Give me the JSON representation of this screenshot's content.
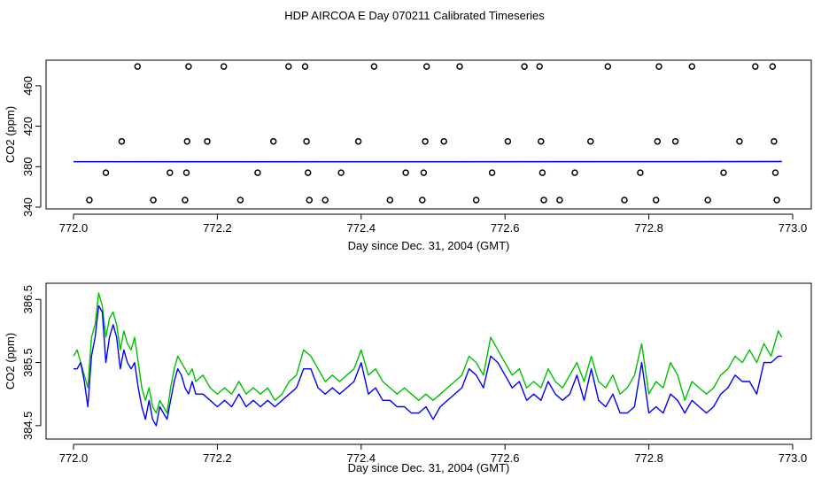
{
  "title": "HDP AIRCOA E  Day 070211  Calibrated Timeseries",
  "colors": {
    "green": "#00c000",
    "blue": "#0000ff",
    "black": "#000000"
  },
  "chart_data": [
    {
      "type": "scatter",
      "xlabel": "Day since Dec. 31, 2004 (GMT)",
      "ylabel": "CO2 (ppm)",
      "xlim": [
        772.0,
        773.0
      ],
      "ylim": [
        340,
        480
      ],
      "xticks": [
        "772.0",
        "772.2",
        "772.4",
        "772.6",
        "772.8",
        "773.0"
      ],
      "yticks": [
        "340",
        "380",
        "420",
        "460"
      ],
      "scatter_points": [
        [
          772.022,
          347
        ],
        [
          772.045,
          374
        ],
        [
          772.067,
          405
        ],
        [
          772.089,
          479
        ],
        [
          772.111,
          347
        ],
        [
          772.134,
          374
        ],
        [
          772.155,
          347
        ],
        [
          772.157,
          374
        ],
        [
          772.158,
          405
        ],
        [
          772.16,
          479
        ],
        [
          772.186,
          405
        ],
        [
          772.209,
          479
        ],
        [
          772.232,
          347
        ],
        [
          772.256,
          374
        ],
        [
          772.278,
          405
        ],
        [
          772.299,
          479
        ],
        [
          772.322,
          479
        ],
        [
          772.324,
          405
        ],
        [
          772.326,
          374
        ],
        [
          772.328,
          347
        ],
        [
          772.35,
          347
        ],
        [
          772.372,
          374
        ],
        [
          772.396,
          405
        ],
        [
          772.418,
          479
        ],
        [
          772.44,
          347
        ],
        [
          772.462,
          374
        ],
        [
          772.485,
          347
        ],
        [
          772.487,
          374
        ],
        [
          772.489,
          405
        ],
        [
          772.491,
          479
        ],
        [
          772.515,
          405
        ],
        [
          772.537,
          479
        ],
        [
          772.56,
          347
        ],
        [
          772.582,
          374
        ],
        [
          772.604,
          405
        ],
        [
          772.627,
          479
        ],
        [
          772.648,
          479
        ],
        [
          772.65,
          405
        ],
        [
          772.652,
          374
        ],
        [
          772.654,
          347
        ],
        [
          772.676,
          347
        ],
        [
          772.697,
          374
        ],
        [
          772.719,
          405
        ],
        [
          772.743,
          479
        ],
        [
          772.766,
          347
        ],
        [
          772.788,
          374
        ],
        [
          772.81,
          347
        ],
        [
          772.812,
          405
        ],
        [
          772.814,
          479
        ],
        [
          772.837,
          405
        ],
        [
          772.86,
          479
        ],
        [
          772.882,
          347
        ],
        [
          772.904,
          374
        ],
        [
          772.926,
          405
        ],
        [
          772.948,
          479
        ],
        [
          772.972,
          479
        ],
        [
          772.974,
          405
        ],
        [
          772.976,
          374
        ],
        [
          772.978,
          347
        ]
      ],
      "series": [
        {
          "color": "#00c000",
          "x": [
            772.0,
            772.5,
            772.985
          ],
          "values": [
            385.0,
            385.0,
            385.2
          ]
        },
        {
          "color": "#0000ff",
          "x": [
            772.0,
            772.5,
            772.985
          ],
          "values": [
            384.9,
            384.8,
            385.0
          ]
        }
      ]
    },
    {
      "type": "line",
      "xlabel": "Day since Dec. 31, 2004 (GMT)",
      "ylabel": "CO2 (ppm)",
      "xlim": [
        772.0,
        773.0
      ],
      "ylim": [
        384.4,
        386.7
      ],
      "xticks": [
        "772.0",
        "772.2",
        "772.4",
        "772.6",
        "772.8",
        "773.0"
      ],
      "yticks": [
        "384.5",
        "385.5",
        "386.5"
      ],
      "series": [
        {
          "color": "#00c000",
          "x": [
            772.0,
            772.005,
            772.01,
            772.015,
            772.02,
            772.025,
            772.03,
            772.035,
            772.04,
            772.045,
            772.05,
            772.055,
            772.06,
            772.065,
            772.07,
            772.075,
            772.08,
            772.085,
            772.09,
            772.095,
            772.1,
            772.105,
            772.11,
            772.115,
            772.12,
            772.125,
            772.13,
            772.135,
            772.14,
            772.145,
            772.15,
            772.155,
            772.16,
            772.165,
            772.17,
            772.18,
            772.19,
            772.2,
            772.21,
            772.22,
            772.23,
            772.24,
            772.25,
            772.26,
            772.27,
            772.28,
            772.29,
            772.3,
            772.31,
            772.32,
            772.33,
            772.34,
            772.35,
            772.36,
            772.37,
            772.38,
            772.39,
            772.4,
            772.41,
            772.42,
            772.43,
            772.44,
            772.45,
            772.46,
            772.47,
            772.48,
            772.49,
            772.5,
            772.51,
            772.52,
            772.53,
            772.54,
            772.55,
            772.56,
            772.57,
            772.58,
            772.59,
            772.6,
            772.61,
            772.62,
            772.63,
            772.64,
            772.65,
            772.66,
            772.67,
            772.68,
            772.69,
            772.7,
            772.71,
            772.72,
            772.73,
            772.74,
            772.75,
            772.76,
            772.77,
            772.78,
            772.79,
            772.8,
            772.81,
            772.82,
            772.83,
            772.84,
            772.85,
            772.86,
            772.87,
            772.88,
            772.89,
            772.9,
            772.91,
            772.92,
            772.93,
            772.94,
            772.95,
            772.96,
            772.97,
            772.98,
            772.985
          ],
          "values": [
            385.6,
            385.7,
            385.5,
            385.3,
            385.1,
            385.9,
            386.1,
            386.6,
            386.4,
            385.9,
            386.2,
            386.3,
            386.1,
            385.7,
            386.0,
            385.8,
            385.7,
            385.9,
            385.5,
            385.1,
            384.9,
            385.1,
            384.8,
            384.7,
            384.9,
            384.8,
            384.7,
            385.1,
            385.4,
            385.6,
            385.5,
            385.4,
            385.3,
            385.4,
            385.2,
            385.3,
            385.1,
            385.0,
            385.1,
            385.0,
            385.2,
            385.0,
            385.1,
            385.0,
            385.1,
            384.9,
            385.0,
            385.2,
            385.3,
            385.7,
            385.6,
            385.4,
            385.2,
            385.3,
            385.2,
            385.3,
            385.4,
            385.7,
            385.3,
            385.4,
            385.2,
            385.1,
            385.0,
            385.1,
            385.0,
            384.9,
            385.0,
            384.9,
            385.0,
            385.1,
            385.2,
            385.3,
            385.6,
            385.5,
            385.3,
            385.9,
            385.7,
            385.5,
            385.3,
            385.4,
            385.1,
            385.2,
            385.1,
            385.4,
            385.2,
            385.1,
            385.3,
            385.5,
            385.2,
            385.6,
            385.2,
            385.1,
            385.3,
            385.0,
            385.1,
            385.3,
            385.8,
            385.0,
            385.2,
            385.1,
            385.5,
            385.3,
            384.9,
            385.2,
            385.1,
            385.0,
            385.1,
            385.3,
            385.4,
            385.6,
            385.5,
            385.7,
            385.5,
            385.8,
            385.6,
            386.0,
            385.9
          ]
        },
        {
          "color": "#0000ff",
          "x": [
            772.0,
            772.005,
            772.01,
            772.015,
            772.02,
            772.025,
            772.03,
            772.035,
            772.04,
            772.045,
            772.05,
            772.055,
            772.06,
            772.065,
            772.07,
            772.075,
            772.08,
            772.085,
            772.09,
            772.095,
            772.1,
            772.105,
            772.11,
            772.115,
            772.12,
            772.125,
            772.13,
            772.135,
            772.14,
            772.145,
            772.15,
            772.155,
            772.16,
            772.165,
            772.17,
            772.18,
            772.19,
            772.2,
            772.21,
            772.22,
            772.23,
            772.24,
            772.25,
            772.26,
            772.27,
            772.28,
            772.29,
            772.3,
            772.31,
            772.32,
            772.33,
            772.34,
            772.35,
            772.36,
            772.37,
            772.38,
            772.39,
            772.4,
            772.41,
            772.42,
            772.43,
            772.44,
            772.45,
            772.46,
            772.47,
            772.48,
            772.49,
            772.5,
            772.51,
            772.52,
            772.53,
            772.54,
            772.55,
            772.56,
            772.57,
            772.58,
            772.59,
            772.6,
            772.61,
            772.62,
            772.63,
            772.64,
            772.65,
            772.66,
            772.67,
            772.68,
            772.69,
            772.7,
            772.71,
            772.72,
            772.73,
            772.74,
            772.75,
            772.76,
            772.77,
            772.78,
            772.79,
            772.8,
            772.81,
            772.82,
            772.83,
            772.84,
            772.85,
            772.86,
            772.87,
            772.88,
            772.89,
            772.9,
            772.91,
            772.92,
            772.93,
            772.94,
            772.95,
            772.96,
            772.97,
            772.98,
            772.985
          ],
          "values": [
            385.4,
            385.4,
            385.5,
            385.2,
            384.8,
            385.6,
            385.9,
            386.4,
            386.3,
            385.5,
            385.9,
            386.1,
            385.9,
            385.4,
            385.7,
            385.5,
            385.4,
            385.5,
            385.1,
            384.8,
            384.6,
            384.9,
            384.6,
            384.5,
            384.8,
            384.7,
            384.6,
            384.9,
            385.2,
            385.4,
            385.3,
            385.1,
            385.0,
            385.2,
            385.0,
            385.0,
            384.9,
            384.8,
            384.9,
            384.8,
            385.0,
            384.8,
            384.9,
            384.8,
            384.9,
            384.8,
            384.9,
            385.0,
            385.1,
            385.4,
            385.4,
            385.1,
            385.0,
            385.1,
            385.0,
            385.1,
            385.2,
            385.5,
            385.0,
            385.1,
            384.9,
            384.9,
            384.8,
            384.8,
            384.7,
            384.7,
            384.8,
            384.6,
            384.8,
            384.9,
            385.0,
            385.1,
            385.4,
            385.3,
            385.1,
            385.6,
            385.5,
            385.3,
            385.1,
            385.2,
            384.9,
            385.0,
            384.9,
            385.2,
            385.0,
            384.9,
            385.0,
            385.3,
            384.9,
            385.4,
            384.9,
            384.8,
            385.0,
            384.7,
            384.7,
            384.8,
            385.5,
            384.7,
            384.8,
            384.7,
            385.0,
            384.9,
            384.7,
            384.9,
            384.8,
            384.7,
            384.8,
            385.0,
            385.1,
            385.3,
            385.2,
            385.2,
            385.0,
            385.5,
            385.5,
            385.6,
            385.6
          ]
        }
      ]
    }
  ]
}
